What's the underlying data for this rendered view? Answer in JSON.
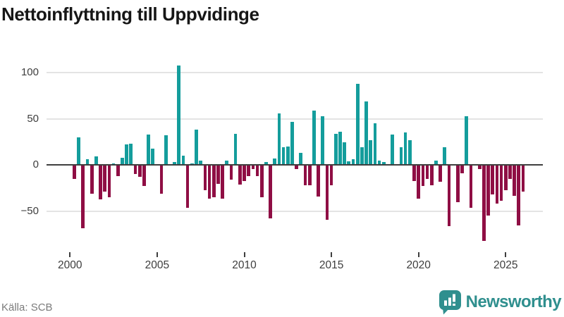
{
  "chart_data": {
    "type": "bar",
    "title": "Nettoinflyttning till Uppvidinge",
    "source": "Källa: SCB",
    "grid": "horizontal",
    "legend": "none",
    "ylim": [
      -92,
      118
    ],
    "positive_color": "#149d9c",
    "negative_color": "#8f0e44",
    "yticks": [
      {
        "value": 100,
        "label": "100"
      },
      {
        "value": 50,
        "label": "50"
      },
      {
        "value": 0,
        "label": "0"
      },
      {
        "value": -50,
        "label": "−50"
      }
    ],
    "xticks": [
      {
        "year": 2000,
        "label": "2000"
      },
      {
        "year": 2005,
        "label": "2005"
      },
      {
        "year": 2010,
        "label": "2010"
      },
      {
        "year": 2015,
        "label": "2015"
      },
      {
        "year": 2020,
        "label": "2020"
      },
      {
        "year": 2025,
        "label": "2025"
      }
    ],
    "x": [
      "2000Q2",
      "2000Q3",
      "2000Q4",
      "2001Q1",
      "2001Q2",
      "2001Q3",
      "2001Q4",
      "2002Q1",
      "2002Q2",
      "2002Q3",
      "2002Q4",
      "2003Q1",
      "2003Q2",
      "2003Q3",
      "2003Q4",
      "2004Q1",
      "2004Q2",
      "2004Q3",
      "2004Q4",
      "2005Q1",
      "2005Q2",
      "2005Q3",
      "2005Q4",
      "2006Q1",
      "2006Q2",
      "2006Q3",
      "2006Q4",
      "2007Q1",
      "2007Q2",
      "2007Q3",
      "2007Q4",
      "2008Q1",
      "2008Q2",
      "2008Q3",
      "2008Q4",
      "2009Q1",
      "2009Q2",
      "2009Q3",
      "2009Q4",
      "2010Q1",
      "2010Q2",
      "2010Q3",
      "2010Q4",
      "2011Q1",
      "2011Q2",
      "2011Q3",
      "2011Q4",
      "2012Q1",
      "2012Q2",
      "2012Q3",
      "2012Q4",
      "2013Q1",
      "2013Q2",
      "2013Q3",
      "2013Q4",
      "2014Q1",
      "2014Q2",
      "2014Q3",
      "2014Q4",
      "2015Q1",
      "2015Q2",
      "2015Q3",
      "2015Q4",
      "2016Q1",
      "2016Q2",
      "2016Q3",
      "2016Q4",
      "2017Q1",
      "2017Q2",
      "2017Q3",
      "2017Q4",
      "2018Q1",
      "2018Q2",
      "2018Q3",
      "2018Q4",
      "2019Q1",
      "2019Q2",
      "2019Q3",
      "2019Q4",
      "2020Q1",
      "2020Q2",
      "2020Q3",
      "2020Q4",
      "2021Q1",
      "2021Q2",
      "2021Q3",
      "2021Q4",
      "2022Q1",
      "2022Q2",
      "2022Q3",
      "2022Q4",
      "2023Q1",
      "2023Q2",
      "2023Q3",
      "2023Q4",
      "2024Q1",
      "2024Q2",
      "2024Q3",
      "2024Q4",
      "2025Q1",
      "2025Q2",
      "2025Q3",
      "2025Q4",
      "2026Q1"
    ],
    "values": [
      -15,
      30,
      -68,
      6,
      -31,
      9,
      -37,
      -29,
      -35,
      2,
      -12,
      8,
      22,
      23,
      -10,
      -13,
      -23,
      33,
      18,
      0,
      -31,
      32,
      0,
      3,
      108,
      10,
      -46,
      2,
      38,
      5,
      -27,
      -36,
      -35,
      -20,
      -36,
      5,
      -16,
      34,
      -21,
      -17,
      -12,
      -4,
      -12,
      -35,
      3,
      -58,
      7,
      56,
      19,
      20,
      47,
      -4,
      13,
      -22,
      -22,
      59,
      -34,
      53,
      -59,
      -22,
      34,
      36,
      25,
      4,
      6,
      88,
      19,
      69,
      27,
      45,
      5,
      3,
      0,
      33,
      0,
      19,
      35,
      27,
      -17,
      -36,
      -23,
      -15,
      -22,
      5,
      -18,
      19,
      -66,
      0,
      -40,
      -9,
      53,
      -46,
      0,
      -4,
      -82,
      -55,
      -32,
      -42,
      -39,
      -27,
      -15,
      -33,
      -65,
      -29
    ]
  },
  "footer": {
    "brand": "Newsworthy",
    "brand_color": "#2f8f8e"
  }
}
